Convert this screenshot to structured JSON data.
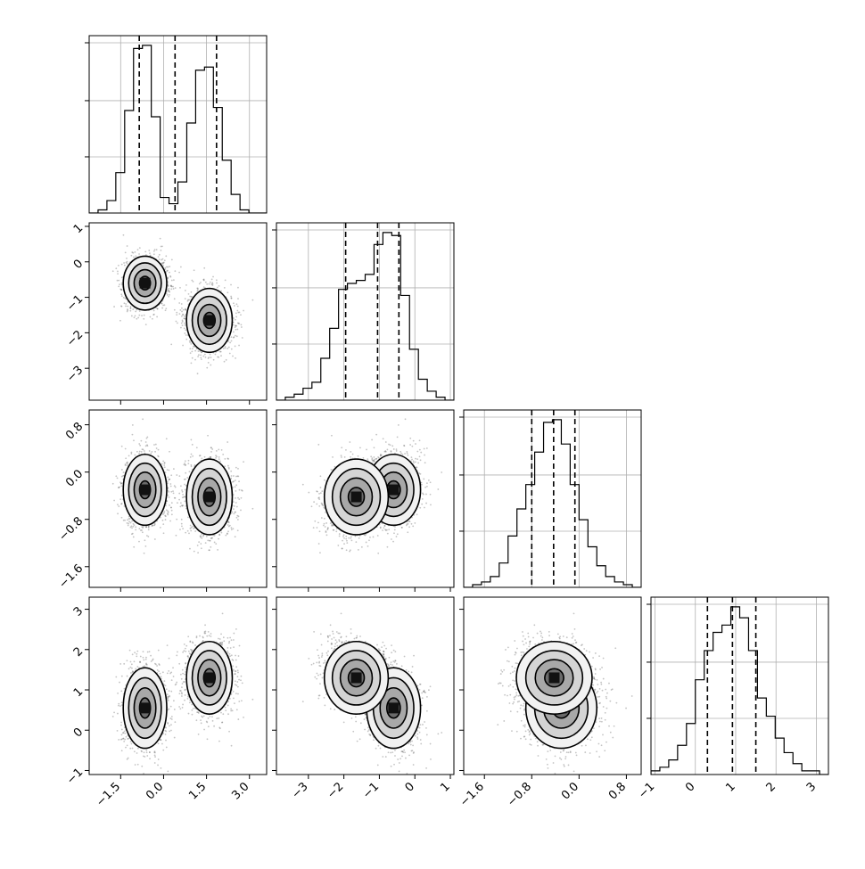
{
  "chart_data": {
    "type": "corner",
    "n_parameters": 4,
    "grid": true,
    "colors": {
      "line": "#000000",
      "grid": "#b0b0b0",
      "points": "#555555"
    },
    "parameters": [
      {
        "range": [
          -2.6,
          3.6
        ],
        "ticks": [
          -1.5,
          0.0,
          1.5,
          3.0
        ],
        "tick_labels": [
          "−1.5",
          "0.0",
          "1.5",
          "3.0"
        ],
        "quantiles": [
          -0.85,
          0.4,
          1.85
        ],
        "histogram": {
          "edges_start": -2.6,
          "bin_width": 0.31,
          "counts": [
            0,
            1,
            4,
            13,
            33,
            53,
            54,
            31,
            5,
            3,
            10,
            29,
            46,
            47,
            34,
            17,
            6,
            1,
            0,
            0
          ]
        }
      },
      {
        "range": [
          -3.9,
          1.1
        ],
        "ticks": [
          -3,
          -2,
          -1,
          0,
          1
        ],
        "tick_labels": [
          "−3",
          "−2",
          "−1",
          "0",
          "1"
        ],
        "quantiles": [
          -1.95,
          -1.05,
          -0.45
        ],
        "histogram": {
          "edges_start": -3.9,
          "bin_width": 0.25,
          "counts": [
            0,
            1,
            2,
            4,
            6,
            14,
            24,
            37,
            39,
            40,
            42,
            52,
            56,
            55,
            35,
            17,
            7,
            3,
            1,
            0
          ]
        }
      },
      {
        "range": [
          -1.95,
          1.05
        ],
        "ticks": [
          -1.6,
          -0.8,
          0.0,
          0.8
        ],
        "tick_labels": [
          "−1.6",
          "−0.8",
          "0.0",
          "0.8"
        ],
        "quantiles": [
          -0.8,
          -0.43,
          -0.07
        ],
        "histogram": {
          "edges_start": -1.95,
          "bin_width": 0.15,
          "counts": [
            0,
            1,
            2,
            4,
            9,
            19,
            29,
            38,
            50,
            61,
            62,
            53,
            38,
            25,
            15,
            8,
            4,
            2,
            1,
            0
          ]
        }
      },
      {
        "range": [
          -1.1,
          3.3
        ],
        "ticks": [
          -1,
          0,
          1,
          2,
          3
        ],
        "tick_labels": [
          "−1",
          "0",
          "1",
          "2",
          "3"
        ],
        "quantiles": [
          0.3,
          0.92,
          1.5
        ],
        "histogram": {
          "edges_start": -1.1,
          "bin_width": 0.22,
          "counts": [
            1,
            2,
            4,
            8,
            14,
            26,
            34,
            39,
            41,
            46,
            43,
            34,
            21,
            16,
            10,
            6,
            3,
            1,
            1,
            0
          ]
        }
      }
    ],
    "histogram_yticks": [
      0.33,
      0.66,
      1.0
    ],
    "clusters": [
      {
        "weight": 0.5,
        "mean": [
          -0.65,
          -0.6,
          -0.3,
          0.55
        ],
        "sd": [
          0.38,
          0.38,
          0.3,
          0.5
        ]
      },
      {
        "weight": 0.5,
        "mean": [
          1.6,
          -1.65,
          -0.42,
          1.3
        ],
        "sd": [
          0.4,
          0.45,
          0.32,
          0.45
        ]
      }
    ],
    "contour_levels": [
      "0.5σ",
      "1σ",
      "1.5σ",
      "2σ"
    ]
  }
}
